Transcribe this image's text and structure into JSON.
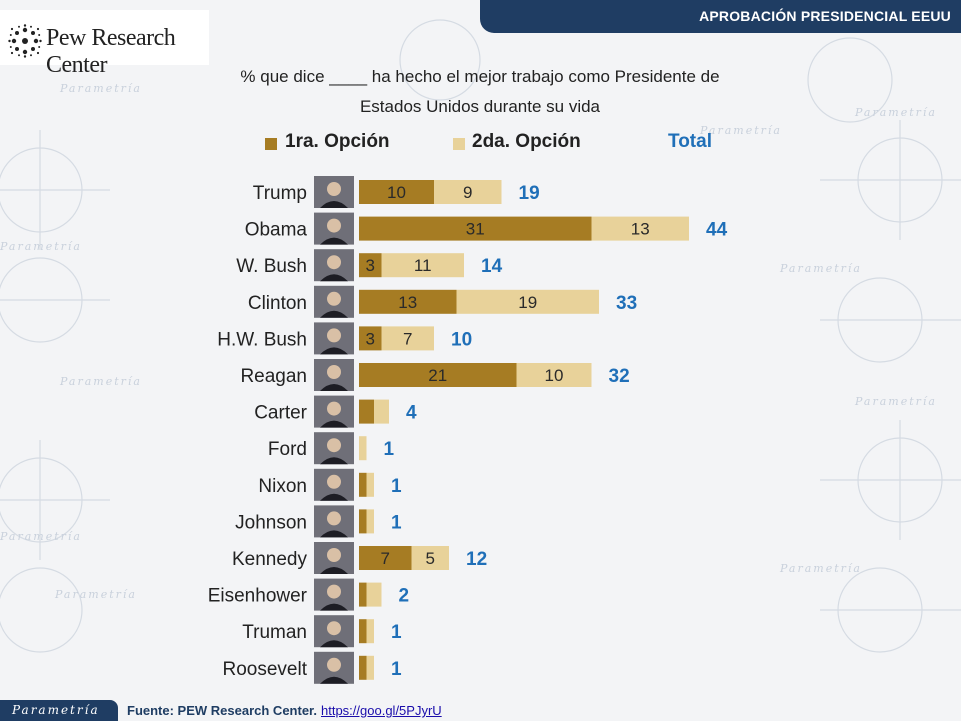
{
  "header": {
    "title": "APROBACIÓN PRESIDENCIAL EEUU"
  },
  "logo": {
    "text": "Pew Research Center"
  },
  "subtitle": {
    "line1": "% que dice ____ ha hecho el mejor trabajo como Presidente de",
    "line2": "Estados Unidos durante su vida"
  },
  "legend": {
    "first": "1ra. Opción",
    "second": "2da. Opción",
    "total": "Total"
  },
  "background": {
    "watermark": "Parametría"
  },
  "footer": {
    "brand": "Parametría",
    "source_label": "Fuente: PEW Research Center.",
    "link": "https://goo.gl/5PJyrU"
  },
  "colors": {
    "first": "#a67c23",
    "second": "#e8d29a",
    "total_label": "#1f6fb8",
    "header": "#1f3d63"
  },
  "chart_data": {
    "type": "bar",
    "orientation": "horizontal",
    "stacked": true,
    "categories": [
      "Trump",
      "Obama",
      "W. Bush",
      "Clinton",
      "H.W. Bush",
      "Reagan",
      "Carter",
      "Ford",
      "Nixon",
      "Johnson",
      "Kennedy",
      "Eisenhower",
      "Truman",
      "Roosevelt"
    ],
    "series": [
      {
        "name": "1ra. Opción",
        "values": [
          10,
          31,
          3,
          13,
          3,
          21,
          2,
          0,
          1,
          1,
          7,
          1,
          1,
          1
        ]
      },
      {
        "name": "2da. Opción",
        "values": [
          9,
          13,
          11,
          19,
          7,
          10,
          2,
          1,
          1,
          1,
          5,
          2,
          1,
          1
        ]
      }
    ],
    "totals": [
      19,
      44,
      14,
      33,
      10,
      32,
      4,
      1,
      1,
      1,
      12,
      2,
      1,
      1
    ],
    "value_labels_shown": {
      "first": [
        10,
        31,
        3,
        13,
        3,
        21,
        null,
        null,
        null,
        null,
        7,
        null,
        null,
        null
      ],
      "second": [
        9,
        13,
        11,
        19,
        7,
        10,
        null,
        null,
        null,
        null,
        5,
        null,
        null,
        null
      ]
    },
    "title": "% que dice ____ ha hecho el mejor trabajo como Presidente de Estados Unidos durante su vida",
    "xlabel": "",
    "ylabel": "",
    "legend_position": "top",
    "grid": false
  }
}
